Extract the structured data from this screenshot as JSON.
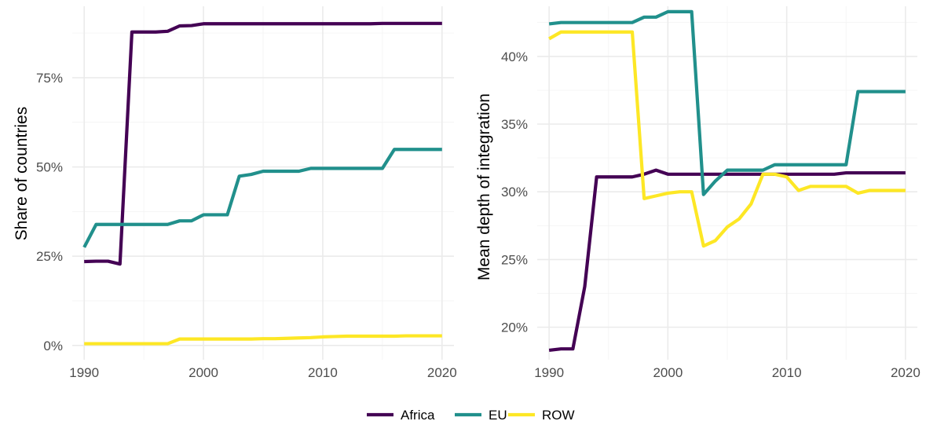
{
  "colors": {
    "Africa": "#440154",
    "EU": "#21908C",
    "ROW": "#FDE725"
  },
  "legend": {
    "items": [
      {
        "label": "Africa",
        "color": "#440154"
      },
      {
        "label": "EU",
        "color": "#21908C"
      },
      {
        "label": "ROW",
        "color": "#FDE725"
      }
    ],
    "position": "bottom"
  },
  "chart_data": [
    {
      "type": "line",
      "title": "",
      "xlabel": "",
      "ylabel": "Share of countries",
      "grid": true,
      "xlim": [
        1989,
        2021
      ],
      "ylim": [
        -4,
        95
      ],
      "x_ticks": [
        1990,
        2000,
        2010,
        2020
      ],
      "x_tick_labels": [
        "1990",
        "2000",
        "2010",
        "2020"
      ],
      "y_ticks": [
        0,
        25,
        50,
        75
      ],
      "y_tick_labels": [
        "0%",
        "25%",
        "50%",
        "75%"
      ],
      "x": [
        1990,
        1991,
        1992,
        1993,
        1994,
        1995,
        1996,
        1997,
        1998,
        1999,
        2000,
        2001,
        2002,
        2003,
        2004,
        2005,
        2006,
        2007,
        2008,
        2009,
        2010,
        2011,
        2012,
        2013,
        2014,
        2015,
        2016,
        2017,
        2018,
        2019,
        2020
      ],
      "series": [
        {
          "name": "Africa",
          "values": [
            23.5,
            23.6,
            23.6,
            22.8,
            87.8,
            87.8,
            87.8,
            88.0,
            89.5,
            89.6,
            90.1,
            90.1,
            90.1,
            90.1,
            90.1,
            90.1,
            90.1,
            90.1,
            90.1,
            90.1,
            90.1,
            90.1,
            90.1,
            90.1,
            90.1,
            90.2,
            90.2,
            90.2,
            90.2,
            90.2,
            90.2
          ]
        },
        {
          "name": "EU",
          "values": [
            27.5,
            33.9,
            33.9,
            33.9,
            33.9,
            33.9,
            33.9,
            33.9,
            34.9,
            34.9,
            36.6,
            36.6,
            36.6,
            47.4,
            47.9,
            48.8,
            48.8,
            48.8,
            48.8,
            49.6,
            49.6,
            49.6,
            49.6,
            49.6,
            49.6,
            49.6,
            54.9,
            54.9,
            54.9,
            54.9,
            54.9
          ]
        },
        {
          "name": "ROW",
          "values": [
            0.5,
            0.5,
            0.5,
            0.5,
            0.5,
            0.5,
            0.5,
            0.5,
            1.8,
            1.8,
            1.8,
            1.8,
            1.8,
            1.8,
            1.8,
            1.9,
            1.9,
            2.0,
            2.1,
            2.2,
            2.4,
            2.5,
            2.6,
            2.6,
            2.6,
            2.6,
            2.6,
            2.7,
            2.7,
            2.7,
            2.7
          ]
        }
      ]
    },
    {
      "type": "line",
      "title": "",
      "xlabel": "",
      "ylabel": "Mean depth of integration",
      "grid": true,
      "xlim": [
        1989,
        2021
      ],
      "ylim": [
        17.6,
        43.7
      ],
      "x_ticks": [
        1990,
        2000,
        2010,
        2020
      ],
      "x_tick_labels": [
        "1990",
        "2000",
        "2010",
        "2020"
      ],
      "y_ticks": [
        20,
        25,
        30,
        35,
        40
      ],
      "y_tick_labels": [
        "20%",
        "25%",
        "30%",
        "35%",
        "40%"
      ],
      "x": [
        1990,
        1991,
        1992,
        1993,
        1994,
        1995,
        1996,
        1997,
        1998,
        1999,
        2000,
        2001,
        2002,
        2003,
        2004,
        2005,
        2006,
        2007,
        2008,
        2009,
        2010,
        2011,
        2012,
        2013,
        2014,
        2015,
        2016,
        2017,
        2018,
        2019,
        2020
      ],
      "series": [
        {
          "name": "Africa",
          "values": [
            18.3,
            18.4,
            18.4,
            23.0,
            31.1,
            31.1,
            31.1,
            31.1,
            31.3,
            31.6,
            31.3,
            31.3,
            31.3,
            31.3,
            31.3,
            31.3,
            31.3,
            31.3,
            31.3,
            31.3,
            31.3,
            31.3,
            31.3,
            31.3,
            31.3,
            31.4,
            31.4,
            31.4,
            31.4,
            31.4,
            31.4
          ]
        },
        {
          "name": "EU",
          "values": [
            42.4,
            42.5,
            42.5,
            42.5,
            42.5,
            42.5,
            42.5,
            42.5,
            42.9,
            42.9,
            43.3,
            43.3,
            43.3,
            29.8,
            30.8,
            31.6,
            31.6,
            31.6,
            31.6,
            32.0,
            32.0,
            32.0,
            32.0,
            32.0,
            32.0,
            32.0,
            37.4,
            37.4,
            37.4,
            37.4,
            37.4
          ]
        },
        {
          "name": "ROW",
          "values": [
            41.3,
            41.8,
            41.8,
            41.8,
            41.8,
            41.8,
            41.8,
            41.8,
            29.5,
            29.7,
            29.9,
            30.0,
            30.0,
            26.0,
            26.4,
            27.4,
            28.0,
            29.1,
            31.3,
            31.3,
            31.1,
            30.1,
            30.4,
            30.4,
            30.4,
            30.4,
            29.9,
            30.1,
            30.1,
            30.1,
            30.1
          ]
        }
      ]
    }
  ]
}
